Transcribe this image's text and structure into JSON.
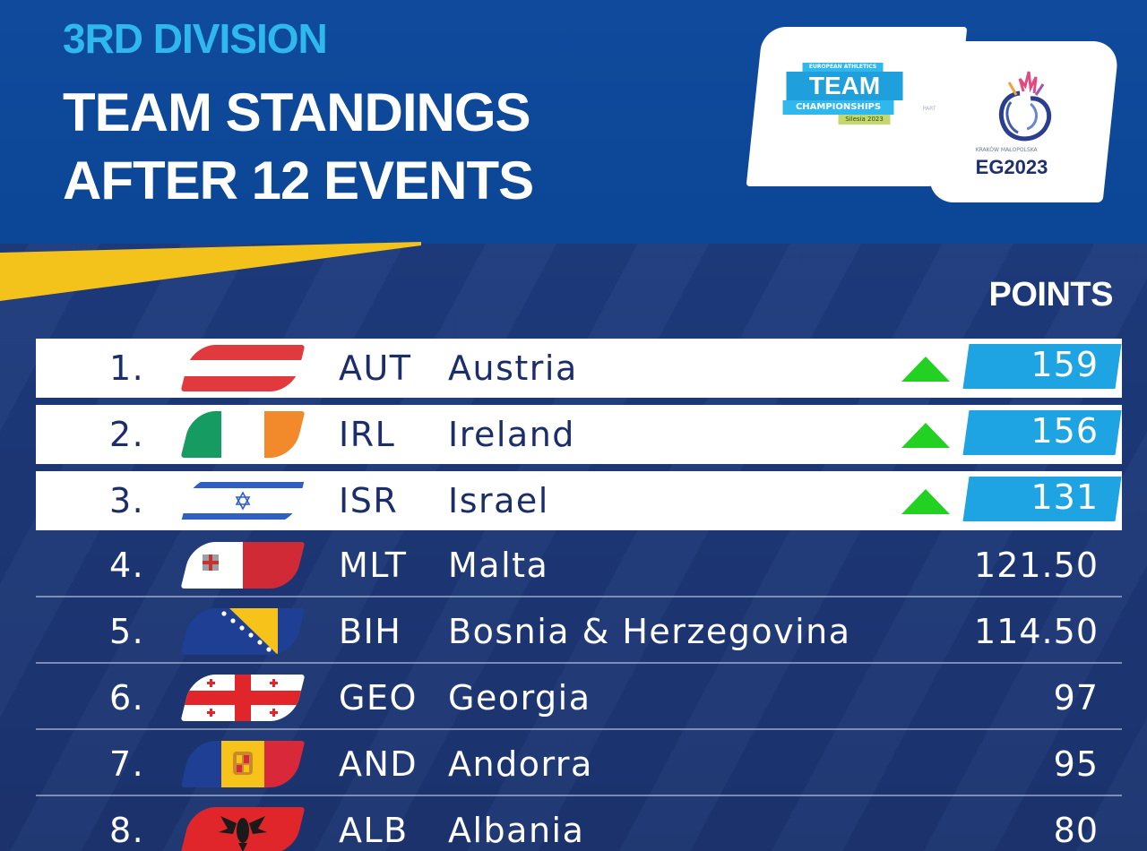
{
  "header": {
    "division": "3RD DIVISION",
    "title_line1": "TEAM STANDINGS",
    "title_line2": "AFTER 12 EVENTS"
  },
  "logos": {
    "left": {
      "line1": "EUROPEAN ATHLETICS",
      "line2": "TEAM",
      "line3": "CHAMPIONSHIPS",
      "line4": "Silesia 2023",
      "icon": "european-athletics-team-logo"
    },
    "separator_text": "PART OF",
    "right": {
      "brand": "EG2023",
      "subtitle": "KRAKÓW MAŁOPOLSKA",
      "icon": "european-games-2023-logo"
    }
  },
  "colors": {
    "header_bg": "#0c4696",
    "body_bg": "#1c3470",
    "accent_blue": "#2fb8ee",
    "points_tab": "#1ea4e2",
    "up_arrow": "#22d122",
    "yellow": "#f3c21b"
  },
  "table": {
    "points_header": "POINTS",
    "rows": [
      {
        "rank": "1.",
        "code": "AUT",
        "country": "Austria",
        "points": "159",
        "trend": "up",
        "flag": "austria-flag-icon"
      },
      {
        "rank": "2.",
        "code": "IRL",
        "country": "Ireland",
        "points": "156",
        "trend": "up",
        "flag": "ireland-flag-icon"
      },
      {
        "rank": "3.",
        "code": "ISR",
        "country": "Israel",
        "points": "131",
        "trend": "up",
        "flag": "israel-flag-icon"
      },
      {
        "rank": "4.",
        "code": "MLT",
        "country": "Malta",
        "points": "121.50",
        "trend": "",
        "flag": "malta-flag-icon"
      },
      {
        "rank": "5.",
        "code": "BIH",
        "country": "Bosnia & Herzegovina",
        "points": "114.50",
        "trend": "",
        "flag": "bosnia-flag-icon"
      },
      {
        "rank": "6.",
        "code": "GEO",
        "country": "Georgia",
        "points": "97",
        "trend": "",
        "flag": "georgia-flag-icon"
      },
      {
        "rank": "7.",
        "code": "AND",
        "country": "Andorra",
        "points": "95",
        "trend": "",
        "flag": "andorra-flag-icon"
      },
      {
        "rank": "8.",
        "code": "ALB",
        "country": "Albania",
        "points": "80",
        "trend": "",
        "flag": "albania-flag-icon"
      }
    ]
  }
}
